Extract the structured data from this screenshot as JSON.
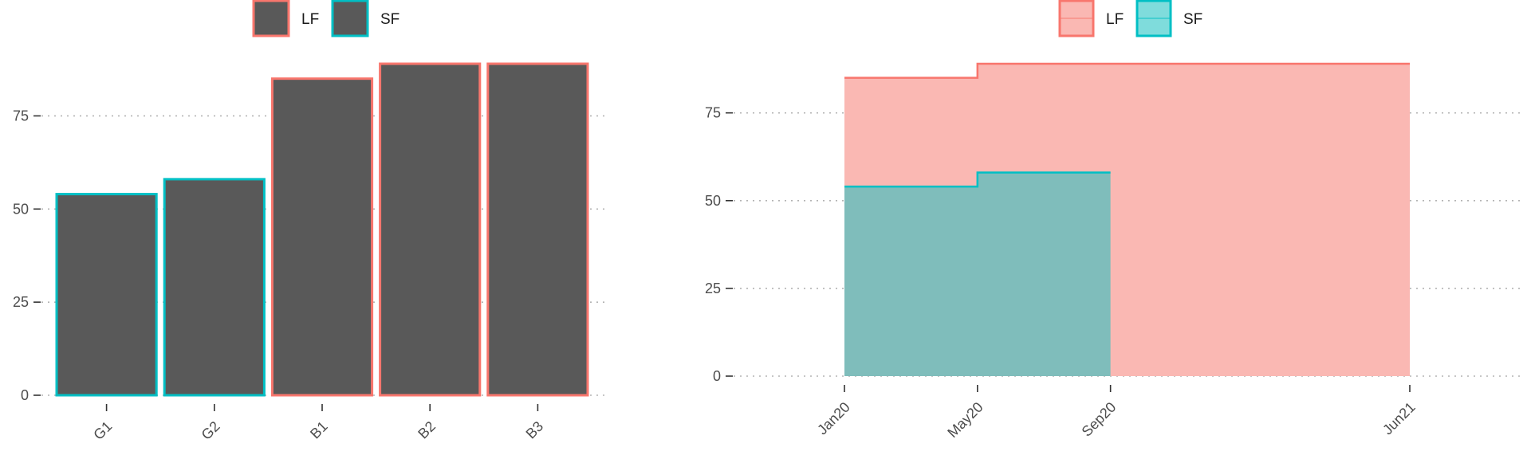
{
  "colors": {
    "LF": "#f8766d",
    "SF": "#00bfc4",
    "bar_fill": "#595959",
    "LF_fill": "#fab8b3",
    "SF_fill": "#7fbdbb"
  },
  "chart_data": [
    {
      "type": "bar",
      "categories": [
        "G1",
        "G2",
        "B1",
        "B2",
        "B3"
      ],
      "values": [
        54,
        58,
        85,
        89,
        89
      ],
      "groups": [
        "SF",
        "SF",
        "LF",
        "LF",
        "LF"
      ],
      "legend": [
        {
          "key": "LF",
          "label": "LF"
        },
        {
          "key": "SF",
          "label": "SF"
        }
      ],
      "legend_position": "top",
      "ylim": [
        0,
        89
      ],
      "yticks": [
        0,
        25,
        50,
        75
      ],
      "grid": "horizontal dotted",
      "xtick_rotation": -45
    },
    {
      "type": "area",
      "step": true,
      "legend": [
        {
          "key": "LF",
          "label": "LF"
        },
        {
          "key": "SF",
          "label": "SF"
        }
      ],
      "legend_position": "top",
      "series": [
        {
          "name": "LF",
          "x": [
            "2020-01",
            "2020-05",
            "2021-06"
          ],
          "y": [
            85,
            89,
            89
          ]
        },
        {
          "name": "SF",
          "x": [
            "2020-01",
            "2020-05",
            "2020-09"
          ],
          "y": [
            54,
            58,
            58
          ]
        }
      ],
      "xticks": [
        "2020-01",
        "2020-05",
        "2020-09",
        "2021-06"
      ],
      "xtick_labels": [
        "Jan20",
        "May20",
        "Sep20",
        "Jun21"
      ],
      "xlim": [
        "2019-10",
        "2021-09"
      ],
      "ylim": [
        0,
        89
      ],
      "yticks": [
        0,
        25,
        50,
        75
      ],
      "grid": "horizontal dotted",
      "xtick_rotation": -45
    }
  ]
}
